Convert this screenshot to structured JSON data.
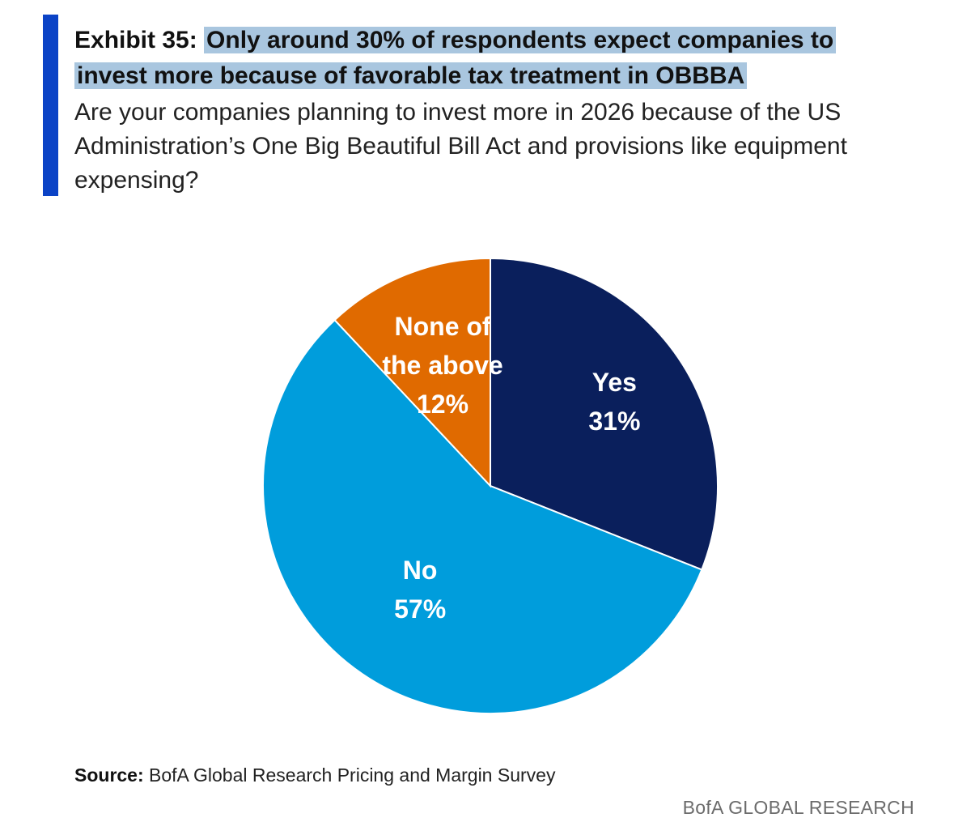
{
  "header": {
    "exhibit_prefix": "Exhibit 35:",
    "title_highlight_line1": "Only around 30% of respondents expect companies to",
    "title_highlight_line2": "invest more because of favorable tax treatment in OBBBA",
    "subtitle": "Are your companies planning to invest more in 2026 because of the US Administration’s One Big Beautiful Bill Act and provisions like equipment expensing?",
    "accent_color": "#0b43c6",
    "highlight_color": "#a9c6df"
  },
  "chart_data": {
    "type": "pie",
    "title": "",
    "start_angle_deg": 0,
    "direction": "clockwise",
    "slices": [
      {
        "label": "Yes",
        "value": 31,
        "value_label": "31%",
        "color": "#0a1f5c"
      },
      {
        "label": "No",
        "value": 57,
        "value_label": "57%",
        "color": "#009ddc"
      },
      {
        "label": "None of the above",
        "label_lines": [
          "None of",
          "the above"
        ],
        "value": 12,
        "value_label": "12%",
        "color": "#e06a00"
      }
    ]
  },
  "footer": {
    "source_label": "Source:",
    "source_text": "BofA Global Research Pricing and Margin Survey",
    "brand": "BofA GLOBAL RESEARCH"
  }
}
